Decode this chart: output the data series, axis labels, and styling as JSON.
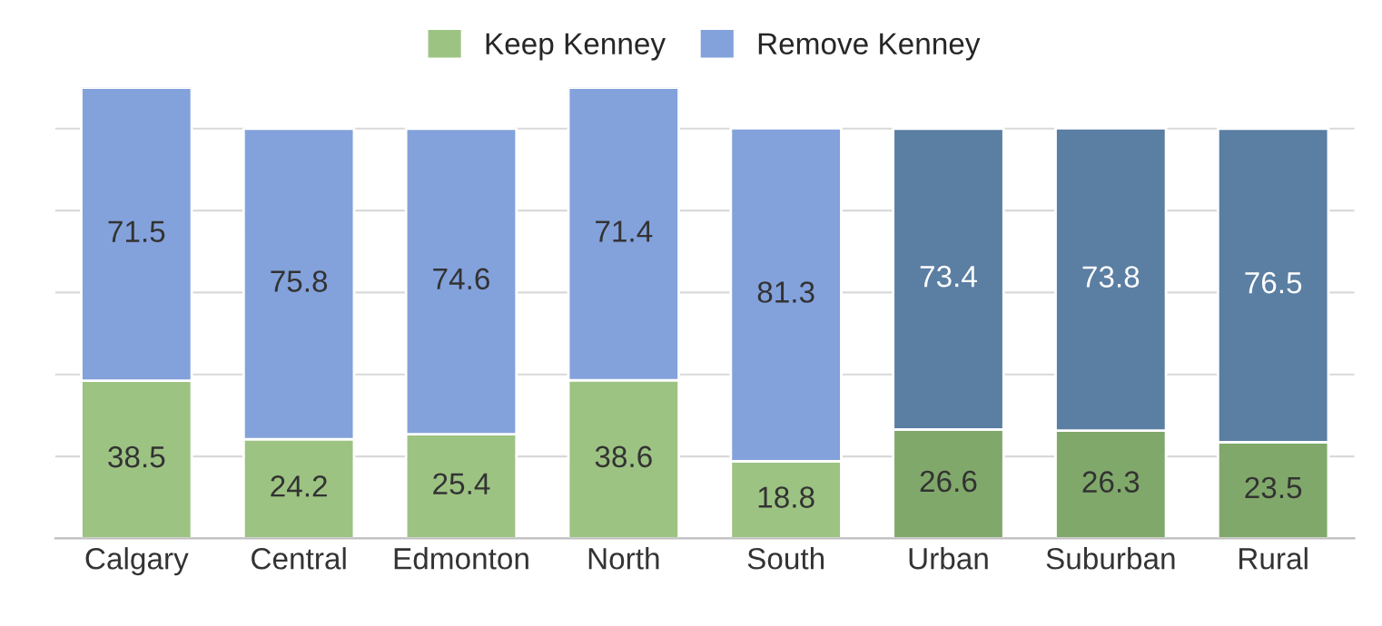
{
  "chart_data": {
    "type": "bar",
    "stacked": true,
    "categories": [
      "Calgary",
      "Central",
      "Edmonton",
      "North",
      "South",
      "Urban",
      "Suburban",
      "Rural"
    ],
    "series": [
      {
        "name": "Keep Kenney",
        "color": "#9dc383",
        "colors": [
          "#9dc383",
          "#9dc383",
          "#9dc383",
          "#9dc383",
          "#9dc383",
          "#80a86a",
          "#80a86a",
          "#80a86a"
        ],
        "values": [
          38.5,
          24.2,
          25.4,
          38.6,
          18.8,
          26.6,
          26.3,
          23.5
        ]
      },
      {
        "name": "Remove Kenney",
        "color": "#83a2dc",
        "colors": [
          "#83a2dc",
          "#83a2dc",
          "#83a2dc",
          "#83a2dc",
          "#83a2dc",
          "#5b7ea3",
          "#5b7ea3",
          "#5b7ea3"
        ],
        "values": [
          71.5,
          75.8,
          74.6,
          71.4,
          81.3,
          73.4,
          73.8,
          76.5
        ]
      }
    ],
    "ylim": [
      0,
      110
    ],
    "yticks": [
      0,
      20,
      40,
      60,
      80,
      100
    ],
    "tick_labels": "x",
    "grid": "y",
    "legend": "top",
    "data_labels": true
  }
}
